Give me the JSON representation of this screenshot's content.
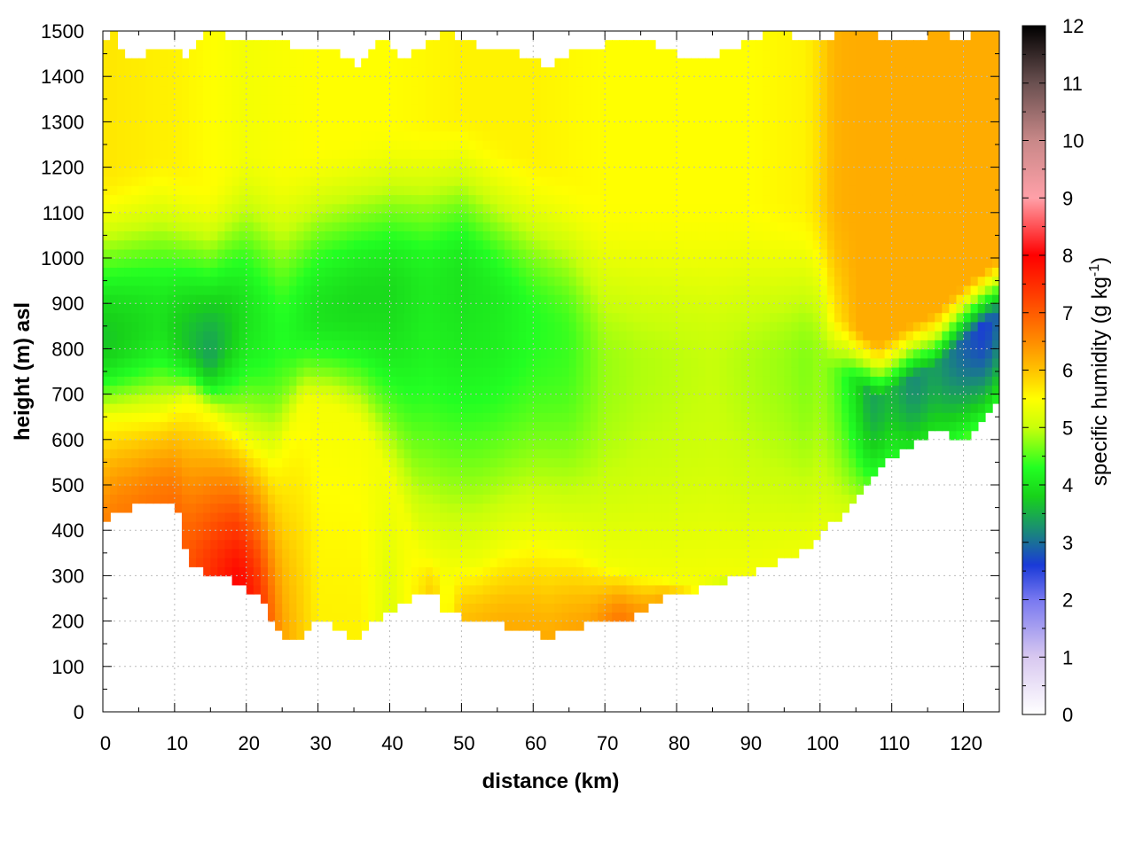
{
  "chart_data": {
    "type": "heatmap",
    "xlabel": "distance (km)",
    "ylabel": "height (m) asl",
    "colorbar_label_parts": [
      "specific humidity (g kg",
      "-1",
      ")"
    ],
    "xlim": [
      0,
      125
    ],
    "ylim": [
      0,
      1500
    ],
    "zlim": [
      0,
      12
    ],
    "x_ticks": [
      "0",
      "10",
      "20",
      "30",
      "40",
      "50",
      "60",
      "70",
      "80",
      "90",
      "100",
      "110",
      "120"
    ],
    "y_ticks": [
      "0",
      "100",
      "200",
      "300",
      "400",
      "500",
      "600",
      "700",
      "800",
      "900",
      "1000",
      "1100",
      "1200",
      "1300",
      "1400",
      "1500"
    ],
    "colorbar_ticks": [
      "0",
      "1",
      "2",
      "3",
      "4",
      "5",
      "6",
      "7",
      "8",
      "9",
      "10",
      "11",
      "12"
    ],
    "grid": true,
    "colormap": [
      {
        "v": 0,
        "c": "#ffffff"
      },
      {
        "v": 1,
        "c": "#d8c8f0"
      },
      {
        "v": 2,
        "c": "#7878f0"
      },
      {
        "v": 2.6,
        "c": "#1a3ad8"
      },
      {
        "v": 3.2,
        "c": "#1a8a78"
      },
      {
        "v": 3.8,
        "c": "#18d21a"
      },
      {
        "v": 4.3,
        "c": "#22ff22"
      },
      {
        "v": 5,
        "c": "#c8ff0a"
      },
      {
        "v": 5.5,
        "c": "#ffff00"
      },
      {
        "v": 6,
        "c": "#ffc200"
      },
      {
        "v": 6.5,
        "c": "#ff8c00"
      },
      {
        "v": 7.3,
        "c": "#ff3e00"
      },
      {
        "v": 8,
        "c": "#ff0000"
      },
      {
        "v": 9,
        "c": "#ffa0a8"
      },
      {
        "v": 10,
        "c": "#c88888"
      },
      {
        "v": 11,
        "c": "#6a5050"
      },
      {
        "v": 12,
        "c": "#000000"
      }
    ],
    "terrain_height": [
      [
        0,
        410
      ],
      [
        2,
        445
      ],
      [
        4,
        450
      ],
      [
        6,
        465
      ],
      [
        8,
        470
      ],
      [
        10,
        465
      ],
      [
        12,
        330
      ],
      [
        14,
        305
      ],
      [
        16,
        300
      ],
      [
        18,
        290
      ],
      [
        20,
        270
      ],
      [
        22,
        255
      ],
      [
        24,
        190
      ],
      [
        26,
        150
      ],
      [
        28,
        175
      ],
      [
        30,
        205
      ],
      [
        33,
        185
      ],
      [
        35,
        155
      ],
      [
        37,
        195
      ],
      [
        40,
        225
      ],
      [
        42,
        240
      ],
      [
        44,
        255
      ],
      [
        46,
        275
      ],
      [
        48,
        215
      ],
      [
        50,
        210
      ],
      [
        52,
        205
      ],
      [
        54,
        200
      ],
      [
        56,
        190
      ],
      [
        58,
        185
      ],
      [
        60,
        180
      ],
      [
        62,
        165
      ],
      [
        64,
        180
      ],
      [
        66,
        185
      ],
      [
        68,
        195
      ],
      [
        70,
        200
      ],
      [
        72,
        205
      ],
      [
        74,
        210
      ],
      [
        76,
        225
      ],
      [
        78,
        255
      ],
      [
        80,
        255
      ],
      [
        82,
        265
      ],
      [
        84,
        275
      ],
      [
        86,
        285
      ],
      [
        88,
        295
      ],
      [
        90,
        305
      ],
      [
        92,
        320
      ],
      [
        94,
        330
      ],
      [
        96,
        340
      ],
      [
        98,
        360
      ],
      [
        100,
        390
      ],
      [
        102,
        420
      ],
      [
        104,
        460
      ],
      [
        106,
        490
      ],
      [
        108,
        530
      ],
      [
        110,
        560
      ],
      [
        112,
        580
      ],
      [
        114,
        600
      ],
      [
        116,
        625
      ],
      [
        118,
        610
      ],
      [
        120,
        590
      ],
      [
        122,
        625
      ],
      [
        124,
        680
      ],
      [
        125,
        700
      ]
    ],
    "top_of_data": [
      [
        0,
        1460
      ],
      [
        2,
        1500
      ],
      [
        3,
        1430
      ],
      [
        5,
        1440
      ],
      [
        7,
        1455
      ],
      [
        10,
        1460
      ],
      [
        12,
        1440
      ],
      [
        15,
        1500
      ],
      [
        18,
        1480
      ],
      [
        22,
        1470
      ],
      [
        25,
        1480
      ],
      [
        27,
        1450
      ],
      [
        30,
        1470
      ],
      [
        33,
        1450
      ],
      [
        36,
        1420
      ],
      [
        39,
        1480
      ],
      [
        42,
        1430
      ],
      [
        45,
        1470
      ],
      [
        48,
        1500
      ],
      [
        52,
        1470
      ],
      [
        56,
        1460
      ],
      [
        60,
        1440
      ],
      [
        62,
        1425
      ],
      [
        66,
        1460
      ],
      [
        70,
        1470
      ],
      [
        74,
        1480
      ],
      [
        77,
        1470
      ],
      [
        80,
        1450
      ],
      [
        84,
        1440
      ],
      [
        88,
        1460
      ],
      [
        92,
        1490
      ],
      [
        96,
        1490
      ],
      [
        100,
        1480
      ],
      [
        104,
        1500
      ],
      [
        108,
        1490
      ],
      [
        112,
        1470
      ],
      [
        116,
        1500
      ],
      [
        120,
        1480
      ],
      [
        123,
        1500
      ],
      [
        125,
        1500
      ]
    ],
    "surface_humidity": [
      [
        0,
        6.6
      ],
      [
        10,
        6.8
      ],
      [
        16,
        7.6
      ],
      [
        19,
        8.0
      ],
      [
        22,
        7.4
      ],
      [
        25,
        6.3
      ],
      [
        30,
        5.6
      ],
      [
        36,
        5.6
      ],
      [
        40,
        5.2
      ],
      [
        46,
        5.9
      ],
      [
        48,
        5.4
      ],
      [
        50,
        6.0
      ],
      [
        56,
        6.2
      ],
      [
        62,
        6.2
      ],
      [
        68,
        6.3
      ],
      [
        72,
        6.7
      ],
      [
        76,
        6.3
      ],
      [
        80,
        6.0
      ],
      [
        84,
        5.2
      ],
      [
        90,
        5.0
      ],
      [
        100,
        5.0
      ],
      [
        110,
        5.0
      ],
      [
        118,
        5.1
      ],
      [
        125,
        5.3
      ]
    ],
    "low_layer_top": [
      [
        0,
        650
      ],
      [
        8,
        660
      ],
      [
        12,
        690
      ],
      [
        16,
        650
      ],
      [
        20,
        600
      ],
      [
        24,
        560
      ],
      [
        28,
        690
      ],
      [
        32,
        680
      ],
      [
        36,
        640
      ],
      [
        40,
        520
      ],
      [
        44,
        360
      ],
      [
        48,
        320
      ],
      [
        52,
        320
      ],
      [
        56,
        360
      ],
      [
        60,
        380
      ],
      [
        66,
        360
      ],
      [
        70,
        320
      ],
      [
        76,
        300
      ],
      [
        80,
        290
      ],
      [
        90,
        300
      ],
      [
        100,
        350
      ],
      [
        110,
        450
      ],
      [
        118,
        500
      ],
      [
        125,
        600
      ]
    ],
    "moist_core_height": [
      [
        0,
        820
      ],
      [
        8,
        860
      ],
      [
        15,
        790
      ],
      [
        20,
        870
      ],
      [
        25,
        840
      ],
      [
        30,
        880
      ],
      [
        35,
        900
      ],
      [
        40,
        920
      ],
      [
        45,
        930
      ],
      [
        50,
        950
      ],
      [
        55,
        900
      ],
      [
        60,
        860
      ],
      [
        65,
        820
      ],
      [
        70,
        760
      ],
      [
        75,
        760
      ],
      [
        80,
        760
      ],
      [
        90,
        760
      ],
      [
        100,
        760
      ],
      [
        104,
        740
      ],
      [
        108,
        690
      ],
      [
        112,
        730
      ],
      [
        116,
        760
      ],
      [
        120,
        820
      ],
      [
        125,
        880
      ]
    ],
    "moist_core_humidity": [
      [
        0,
        3.7
      ],
      [
        8,
        4.0
      ],
      [
        15,
        3.4
      ],
      [
        20,
        4.0
      ],
      [
        25,
        4.3
      ],
      [
        30,
        4.0
      ],
      [
        35,
        3.9
      ],
      [
        40,
        3.9
      ],
      [
        45,
        4.1
      ],
      [
        50,
        4.0
      ],
      [
        55,
        4.1
      ],
      [
        60,
        4.3
      ],
      [
        65,
        4.4
      ],
      [
        70,
        4.8
      ],
      [
        75,
        4.9
      ],
      [
        80,
        4.95
      ],
      [
        85,
        5.0
      ],
      [
        90,
        4.9
      ],
      [
        95,
        4.8
      ],
      [
        98,
        4.7
      ],
      [
        100,
        4.8
      ],
      [
        102,
        4.6
      ],
      [
        104,
        4.2
      ],
      [
        107,
        3.4
      ],
      [
        110,
        3.6
      ],
      [
        113,
        3.2
      ],
      [
        116,
        3.4
      ],
      [
        120,
        2.9
      ],
      [
        123,
        2.6
      ],
      [
        125,
        3.0
      ]
    ],
    "upper_humidity": [
      [
        0,
        5.7
      ],
      [
        10,
        5.6
      ],
      [
        20,
        5.4
      ],
      [
        30,
        5.5
      ],
      [
        40,
        5.5
      ],
      [
        50,
        5.6
      ],
      [
        60,
        5.6
      ],
      [
        70,
        5.5
      ],
      [
        80,
        5.5
      ],
      [
        90,
        5.5
      ],
      [
        98,
        5.6
      ],
      [
        100,
        5.8
      ],
      [
        103,
        6.1
      ],
      [
        108,
        6.2
      ],
      [
        115,
        6.1
      ],
      [
        120,
        6.0
      ],
      [
        125,
        6.0
      ]
    ],
    "eastern_upper_humidity": [
      [
        0,
        0
      ],
      [
        100,
        0
      ],
      [
        102,
        0.6
      ],
      [
        105,
        1
      ],
      [
        125,
        1
      ]
    ]
  }
}
